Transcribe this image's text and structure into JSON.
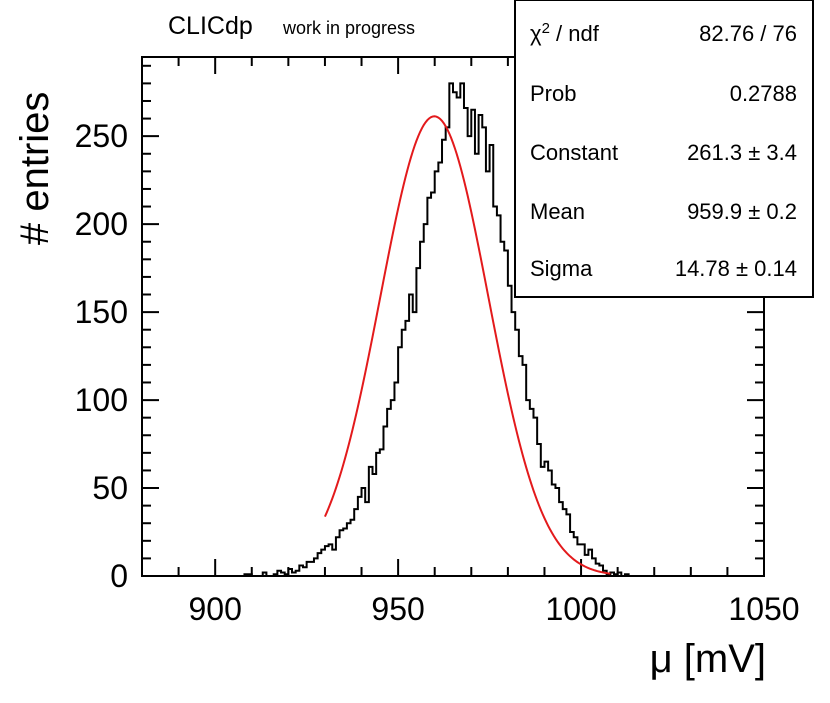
{
  "header": {
    "experiment": "CLICdp",
    "status": "work in progress"
  },
  "stats_box": {
    "chi2_label_symbol": "χ",
    "chi2_label_exp": "2",
    "chi2_label_rest": " / ndf",
    "chi2_value": "82.76 / 76",
    "rows": [
      {
        "label": "Prob",
        "value": "0.2788"
      },
      {
        "label": "Constant",
        "value": "261.3 ± 3.4"
      },
      {
        "label": "Mean",
        "value": "959.9 ± 0.2"
      },
      {
        "label": "Sigma",
        "value": "14.78 ± 0.14"
      }
    ]
  },
  "chart_data": {
    "type": "histogram",
    "title": "",
    "xlabel": "μ [mV]",
    "ylabel": "# entries",
    "xlim": [
      880,
      1050
    ],
    "ylim": [
      0,
      295
    ],
    "x_ticks": [
      900,
      950,
      1000,
      1050
    ],
    "y_ticks": [
      0,
      50,
      100,
      150,
      200,
      250
    ],
    "bin_width": 1,
    "bin_start": 880,
    "counts": [
      0,
      0,
      0,
      0,
      0,
      0,
      0,
      0,
      0,
      0,
      0,
      0,
      0,
      0,
      0,
      0,
      0,
      0,
      0,
      0,
      0,
      0,
      0,
      0,
      0,
      0,
      0,
      0,
      1,
      1,
      0,
      0,
      0,
      2,
      0,
      0,
      1,
      3,
      2,
      1,
      4,
      2,
      3,
      6,
      5,
      8,
      8,
      10,
      13,
      15,
      17,
      18,
      15,
      22,
      26,
      27,
      30,
      32,
      38,
      45,
      50,
      42,
      62,
      58,
      70,
      72,
      85,
      95,
      100,
      110,
      130,
      140,
      145,
      160,
      150,
      175,
      190,
      200,
      215,
      218,
      230,
      235,
      248,
      255,
      280,
      275,
      272,
      280,
      266,
      250,
      265,
      240,
      262,
      255,
      230,
      245,
      210,
      205,
      190,
      185,
      165,
      150,
      140,
      125,
      120,
      100,
      95,
      90,
      75,
      62,
      65,
      60,
      52,
      50,
      42,
      38,
      35,
      25,
      22,
      18,
      18,
      12,
      15,
      10,
      7,
      6,
      3,
      1,
      2,
      1,
      2,
      0,
      1,
      0,
      0,
      0,
      0,
      0,
      0,
      0,
      0,
      0,
      0,
      0,
      0,
      0,
      0,
      0,
      0,
      0,
      0,
      0,
      0,
      0,
      0,
      0,
      0,
      0,
      0,
      0,
      0,
      0,
      0,
      0,
      0,
      0,
      0,
      0,
      0,
      0,
      0
    ],
    "fit": {
      "name": "gaus",
      "constant": 261.3,
      "mean": 959.9,
      "sigma": 14.78,
      "range": [
        930,
        1008
      ],
      "color": "#e31a1c"
    },
    "colors": {
      "histogram": "#000000",
      "fit": "#e31a1c",
      "axis": "#000000"
    }
  }
}
